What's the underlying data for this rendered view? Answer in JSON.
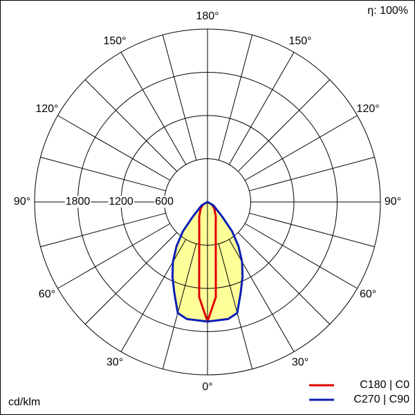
{
  "chart_data": {
    "type": "polar",
    "efficiency_label": "η: 100%",
    "unit_label": "cd/klm",
    "rlim": [
      0,
      2400
    ],
    "rticks": [
      600,
      1200,
      1800
    ],
    "angle_grid": [
      0,
      15,
      30,
      45,
      60,
      75,
      90,
      105,
      120,
      135,
      150,
      165,
      180
    ],
    "angle_ticks": [
      {
        "value": 0,
        "label": "0°"
      },
      {
        "value": 30,
        "label": "30°"
      },
      {
        "value": 60,
        "label": "60°"
      },
      {
        "value": 90,
        "label": "90°"
      },
      {
        "value": 120,
        "label": "120°"
      },
      {
        "value": 150,
        "label": "150°"
      },
      {
        "value": 180,
        "label": "180°"
      }
    ],
    "series": [
      {
        "name": "C180 | C0",
        "color": "#e00000",
        "fill": null,
        "angles": [
          0,
          5,
          10,
          15,
          20,
          30,
          45,
          60,
          90
        ],
        "values": [
          1660,
          1325,
          660,
          440,
          335,
          230,
          135,
          75,
          0
        ]
      },
      {
        "name": "C270 | C90",
        "color": "#0a1eb4",
        "fill": "#ffff99",
        "angles": [
          0,
          10,
          15,
          20,
          25,
          30,
          35,
          40,
          45,
          60,
          90
        ],
        "values": [
          1660,
          1650,
          1595,
          1345,
          1150,
          960,
          750,
          530,
          290,
          95,
          0
        ]
      }
    ]
  }
}
